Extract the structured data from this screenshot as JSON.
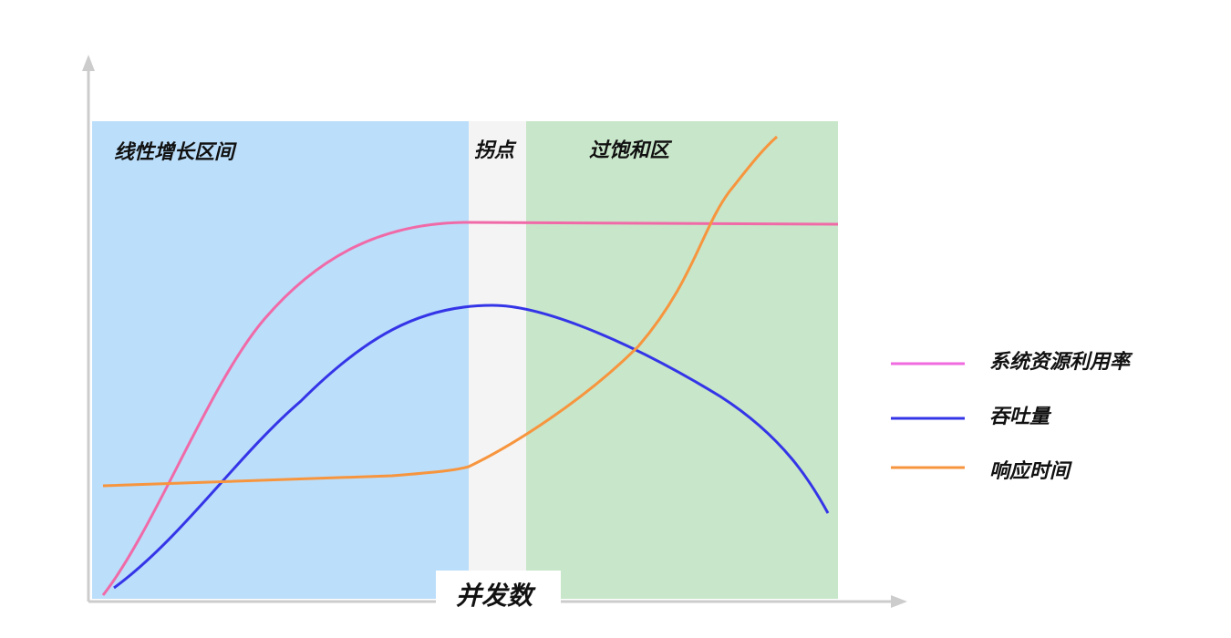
{
  "regions": [
    {
      "label": "线性增长区间"
    },
    {
      "label": "拐点"
    },
    {
      "label": "过饱和区"
    }
  ],
  "x_axis": {
    "label": "并发数"
  },
  "legend": [
    {
      "label": "系统资源利用率"
    },
    {
      "label": "吞吐量"
    },
    {
      "label": "响应时间"
    }
  ]
}
